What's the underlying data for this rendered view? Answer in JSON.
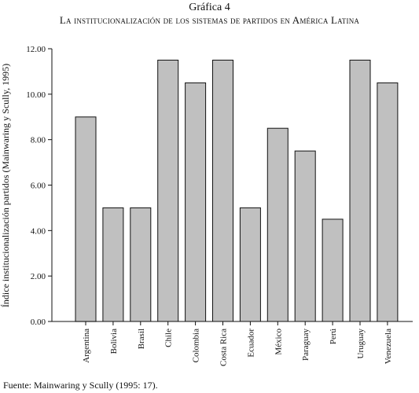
{
  "figure": {
    "label": "Gráfica 4",
    "title": "La institucionalización de los sistemas de partidos en América Latina"
  },
  "source": "Fuente: Mainwaring y Scully (1995: 17).",
  "chart_data": {
    "type": "bar",
    "title": "La institucionalización de los sistemas de partidos en América Latina",
    "xlabel": "",
    "ylabel": "Índice institucionalización partidos (Mainwaring y Scully, 1995)",
    "categories": [
      "Argentina",
      "Bolivia",
      "Brasil",
      "Chile",
      "Colombia",
      "Costa Rica",
      "Ecuador",
      "México",
      "Paraguay",
      "Perú",
      "Uruguay",
      "Venezuela"
    ],
    "values": [
      9.0,
      5.0,
      5.0,
      11.5,
      10.5,
      11.5,
      5.0,
      8.5,
      7.5,
      4.5,
      11.5,
      10.5
    ],
    "ylim": [
      0,
      12
    ],
    "yticks": [
      "0.00",
      "2.00",
      "4.00",
      "6.00",
      "8.00",
      "10.00",
      "12.00"
    ],
    "bar_color": "#c0c0c0",
    "grid": false,
    "legend": "none"
  }
}
